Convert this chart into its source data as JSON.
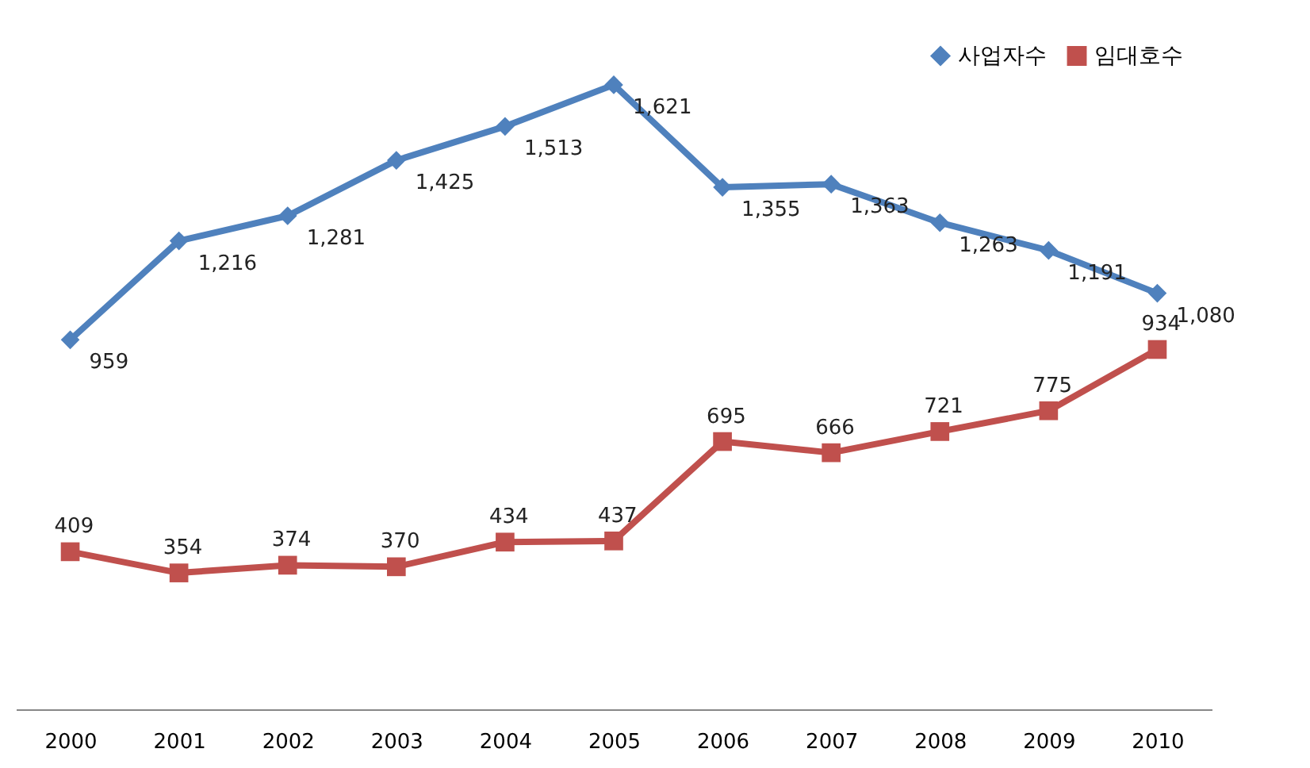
{
  "chart_data": {
    "type": "line",
    "categories": [
      "2000",
      "2001",
      "2002",
      "2003",
      "2004",
      "2005",
      "2006",
      "2007",
      "2008",
      "2009",
      "2010"
    ],
    "series": [
      {
        "name": "사업자수",
        "color": "#4f81bd",
        "marker": "diamond",
        "values": [
          959,
          1216,
          1281,
          1425,
          1513,
          1621,
          1355,
          1363,
          1263,
          1191,
          1080
        ],
        "value_labels": [
          "959",
          "1,216",
          "1,281",
          "1,425",
          "1,513",
          "1,621",
          "1,355",
          "1,363",
          "1,263",
          "1,191",
          "1,080"
        ]
      },
      {
        "name": "임대호수",
        "color": "#c0504d",
        "marker": "square",
        "values": [
          409,
          354,
          374,
          370,
          434,
          437,
          695,
          666,
          721,
          775,
          934
        ],
        "value_labels": [
          "409",
          "354",
          "374",
          "370",
          "434",
          "437",
          "695",
          "666",
          "721",
          "775",
          "934"
        ]
      }
    ],
    "legend": "top right",
    "grid": false,
    "line_style": "solid",
    "tick_labels": "x"
  }
}
